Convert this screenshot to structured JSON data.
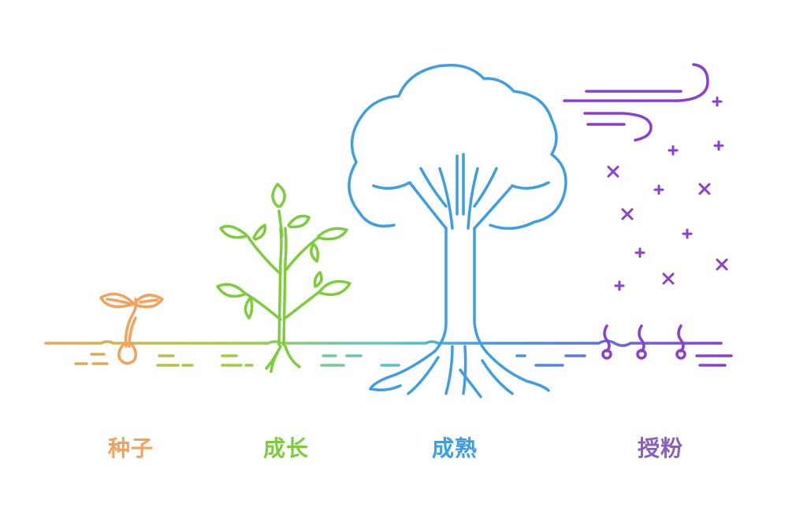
{
  "stages": [
    {
      "label": "种子",
      "color": "#f2a25a",
      "icon": "seedling-icon"
    },
    {
      "label": "成长",
      "color": "#7ccd3c",
      "icon": "young-plant-icon"
    },
    {
      "label": "成熟",
      "color": "#3d9ee6",
      "icon": "tree-icon"
    },
    {
      "label": "授粉",
      "color": "#8a3fcf",
      "icon": "wind-pollen-icon"
    }
  ],
  "colors": {
    "seed": "#f2a25a",
    "growth": "#7ccd3c",
    "mature": "#3d9ee6",
    "pollen": "#8a3fcf"
  }
}
